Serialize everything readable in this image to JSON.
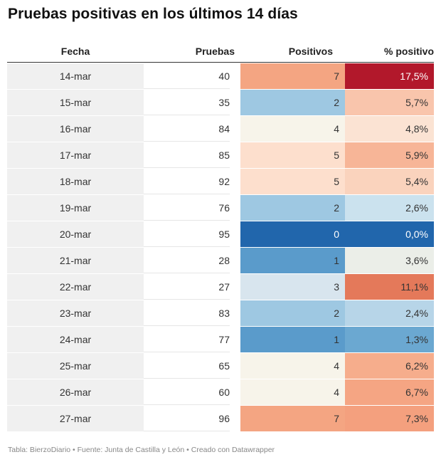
{
  "title": "Pruebas positivas en los últimos 14 días",
  "chart_data": {
    "type": "table",
    "title": "Pruebas positivas en los últimos 14 días",
    "columns": [
      "Fecha",
      "Pruebas",
      "Positivos",
      "% positivo"
    ],
    "rows": [
      {
        "fecha": "14-mar",
        "pruebas": "40",
        "positivos": "7",
        "pct": "17,5%",
        "pos_color": "#f4a582",
        "pct_color": "#b2182b"
      },
      {
        "fecha": "15-mar",
        "pruebas": "35",
        "positivos": "2",
        "pct": "5,7%",
        "pos_color": "#9ec8e2",
        "pct_color": "#f9c5ac"
      },
      {
        "fecha": "16-mar",
        "pruebas": "84",
        "positivos": "4",
        "pct": "4,8%",
        "pos_color": "#f7f4ea",
        "pct_color": "#fbe3d3"
      },
      {
        "fecha": "17-mar",
        "pruebas": "85",
        "positivos": "5",
        "pct": "5,9%",
        "pos_color": "#fddfcd",
        "pct_color": "#f7b597"
      },
      {
        "fecha": "18-mar",
        "pruebas": "92",
        "positivos": "5",
        "pct": "5,4%",
        "pos_color": "#fddfcd",
        "pct_color": "#fad3bd"
      },
      {
        "fecha": "19-mar",
        "pruebas": "76",
        "positivos": "2",
        "pct": "2,6%",
        "pos_color": "#9ec8e2",
        "pct_color": "#cbe2ee"
      },
      {
        "fecha": "20-mar",
        "pruebas": "95",
        "positivos": "0",
        "pct": "0,0%",
        "pos_color": "#2166ac",
        "pct_color": "#2166ac"
      },
      {
        "fecha": "21-mar",
        "pruebas": "28",
        "positivos": "1",
        "pct": "3,6%",
        "pos_color": "#5a9bcb",
        "pct_color": "#ebeee8"
      },
      {
        "fecha": "22-mar",
        "pruebas": "27",
        "positivos": "3",
        "pct": "11,1%",
        "pos_color": "#d8e5ee",
        "pct_color": "#e4795a"
      },
      {
        "fecha": "23-mar",
        "pruebas": "83",
        "positivos": "2",
        "pct": "2,4%",
        "pos_color": "#9ec8e2",
        "pct_color": "#b7d5e8"
      },
      {
        "fecha": "24-mar",
        "pruebas": "77",
        "positivos": "1",
        "pct": "1,3%",
        "pos_color": "#5a9bcb",
        "pct_color": "#6ba8d1"
      },
      {
        "fecha": "25-mar",
        "pruebas": "65",
        "positivos": "4",
        "pct": "6,2%",
        "pos_color": "#f7f4ea",
        "pct_color": "#f6ad8c"
      },
      {
        "fecha": "26-mar",
        "pruebas": "60",
        "positivos": "4",
        "pct": "6,7%",
        "pos_color": "#f7f4ea",
        "pct_color": "#f5a583"
      },
      {
        "fecha": "27-mar",
        "pruebas": "96",
        "positivos": "7",
        "pct": "7,3%",
        "pos_color": "#f4a582",
        "pct_color": "#f4a07e"
      }
    ]
  },
  "footer": "Tabla: BierzoDiario • Fuente: Junta de Castilla y León • Creado con Datawrapper"
}
